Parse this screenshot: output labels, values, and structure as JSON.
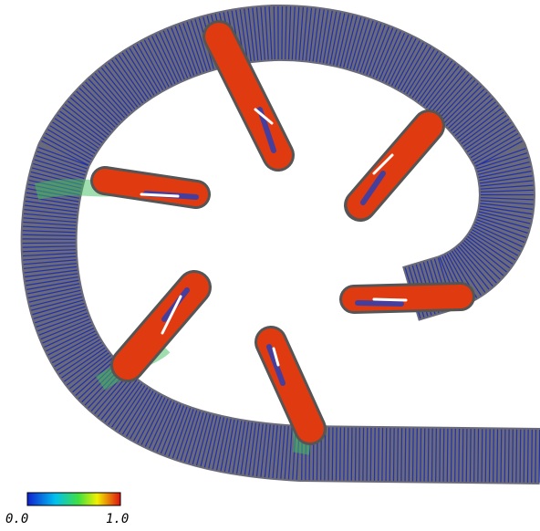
{
  "colorbar": {
    "min_label": "0.0",
    "max_label": "1.0"
  }
}
